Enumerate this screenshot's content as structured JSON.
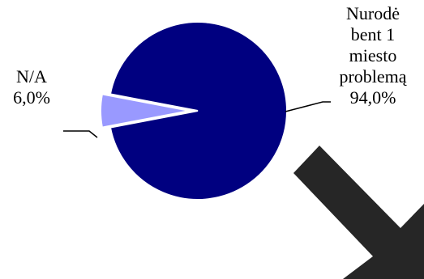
{
  "chart_data": {
    "type": "pie",
    "slices": [
      {
        "label": "Nurodė bent 1 miesto problemą",
        "label_lines": [
          "Nurodė",
          "bent 1",
          "miesto",
          "problemą"
        ],
        "value_text": "94,0%",
        "value": 94.0,
        "color": "#000080"
      },
      {
        "label": "N/A",
        "label_lines": [
          "N/A"
        ],
        "value_text": "6,0%",
        "value": 6.0,
        "color": "#9999ff",
        "exploded": true
      }
    ],
    "legend": "none",
    "start_angle_deg": 0
  },
  "colors": {
    "arrow": "#262626",
    "leader_line": "#000000"
  },
  "decorations": {
    "arrow_icon": "arrow-down-right-icon"
  }
}
